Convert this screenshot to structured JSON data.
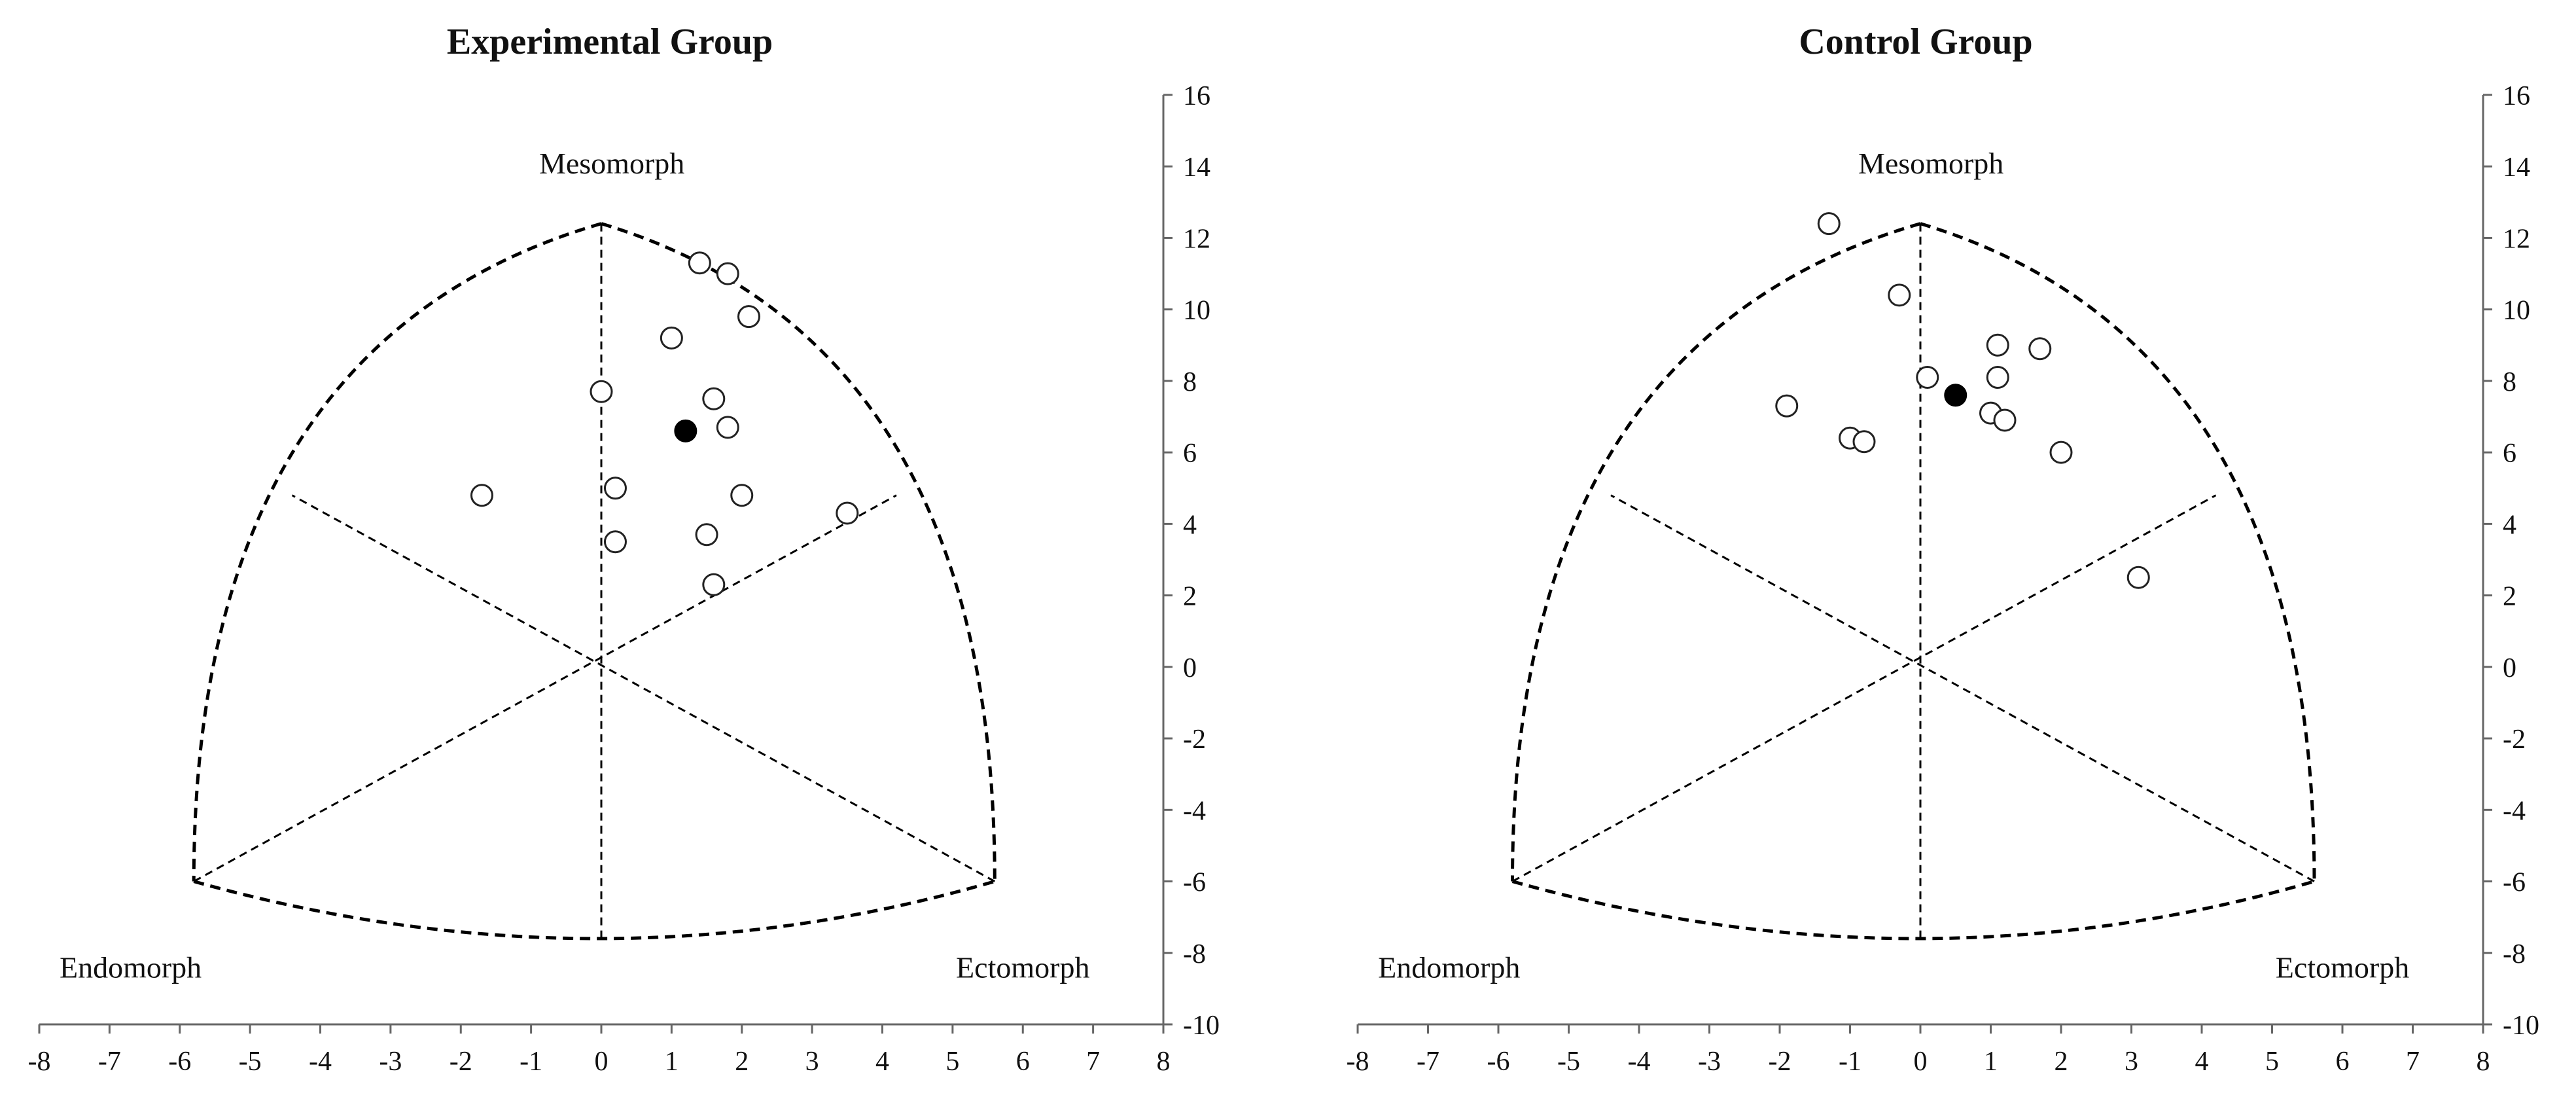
{
  "chart_data": [
    {
      "type": "scatter",
      "title": "Experimental Group",
      "xlim": [
        -8,
        8
      ],
      "ylim": [
        -10,
        16
      ],
      "x_ticks": [
        "-8",
        "-7",
        "-6",
        "-5",
        "-4",
        "-3",
        "-2",
        "-1",
        "0",
        "1",
        "2",
        "3",
        "4",
        "5",
        "6",
        "7",
        "8"
      ],
      "y_ticks": [
        "-10",
        "-8",
        "-6",
        "-4",
        "-2",
        "0",
        "2",
        "4",
        "6",
        "8",
        "10",
        "12",
        "14",
        "16"
      ],
      "region_labels": {
        "mesomorph": "Mesomorph",
        "endomorph": "Endomorph",
        "ectomorph": "Ectomorph"
      },
      "somatochart": {
        "mesomorph_apex": [
          0,
          12.4
        ],
        "endomorph_corner": [
          -5.8,
          -6
        ],
        "ectomorph_corner": [
          5.6,
          -6
        ],
        "bottom_center": [
          0,
          -7.6
        ],
        "origin": [
          0,
          0.2
        ],
        "left_side_mid": [
          -4.4,
          4.8
        ],
        "right_side_mid": [
          4.2,
          4.8
        ]
      },
      "points": [
        {
          "x": 1.4,
          "y": 11.3
        },
        {
          "x": 1.8,
          "y": 11.0
        },
        {
          "x": 2.1,
          "y": 9.8
        },
        {
          "x": 1.0,
          "y": 9.2
        },
        {
          "x": 0.0,
          "y": 7.7
        },
        {
          "x": 1.6,
          "y": 7.5
        },
        {
          "x": 1.8,
          "y": 6.7
        },
        {
          "x": -1.7,
          "y": 4.8
        },
        {
          "x": 0.2,
          "y": 5.0
        },
        {
          "x": 2.0,
          "y": 4.8
        },
        {
          "x": 3.5,
          "y": 4.3
        },
        {
          "x": 1.5,
          "y": 3.7
        },
        {
          "x": 0.2,
          "y": 3.5
        },
        {
          "x": 1.6,
          "y": 2.3
        }
      ],
      "mean_point": {
        "x": 1.2,
        "y": 6.6
      }
    },
    {
      "type": "scatter",
      "title": "Control Group",
      "xlim": [
        -8,
        8
      ],
      "ylim": [
        -10,
        16
      ],
      "x_ticks": [
        "-8",
        "-7",
        "-6",
        "-5",
        "-4",
        "-3",
        "-2",
        "-1",
        "0",
        "1",
        "2",
        "3",
        "4",
        "5",
        "6",
        "7",
        "8"
      ],
      "y_ticks": [
        "-10",
        "-8",
        "-6",
        "-4",
        "-2",
        "0",
        "2",
        "4",
        "6",
        "8",
        "10",
        "12",
        "14",
        "16"
      ],
      "region_labels": {
        "mesomorph": "Mesomorph",
        "endomorph": "Endomorph",
        "ectomorph": "Ectomorph"
      },
      "somatochart": {
        "mesomorph_apex": [
          0,
          12.4
        ],
        "endomorph_corner": [
          -5.8,
          -6
        ],
        "ectomorph_corner": [
          5.6,
          -6
        ],
        "bottom_center": [
          0,
          -7.6
        ],
        "origin": [
          0,
          0.2
        ],
        "left_side_mid": [
          -4.4,
          4.8
        ],
        "right_side_mid": [
          4.2,
          4.8
        ]
      },
      "points": [
        {
          "x": -1.3,
          "y": 12.4
        },
        {
          "x": -0.3,
          "y": 10.4
        },
        {
          "x": 1.1,
          "y": 9.0
        },
        {
          "x": 1.7,
          "y": 8.9
        },
        {
          "x": 0.1,
          "y": 8.1
        },
        {
          "x": 1.1,
          "y": 8.1
        },
        {
          "x": -1.9,
          "y": 7.3
        },
        {
          "x": 1.0,
          "y": 7.1
        },
        {
          "x": 1.2,
          "y": 6.9
        },
        {
          "x": -1.0,
          "y": 6.4
        },
        {
          "x": -0.8,
          "y": 6.3
        },
        {
          "x": 2.0,
          "y": 6.0
        },
        {
          "x": 3.1,
          "y": 2.5
        }
      ],
      "mean_point": {
        "x": 0.5,
        "y": 7.6
      }
    }
  ]
}
